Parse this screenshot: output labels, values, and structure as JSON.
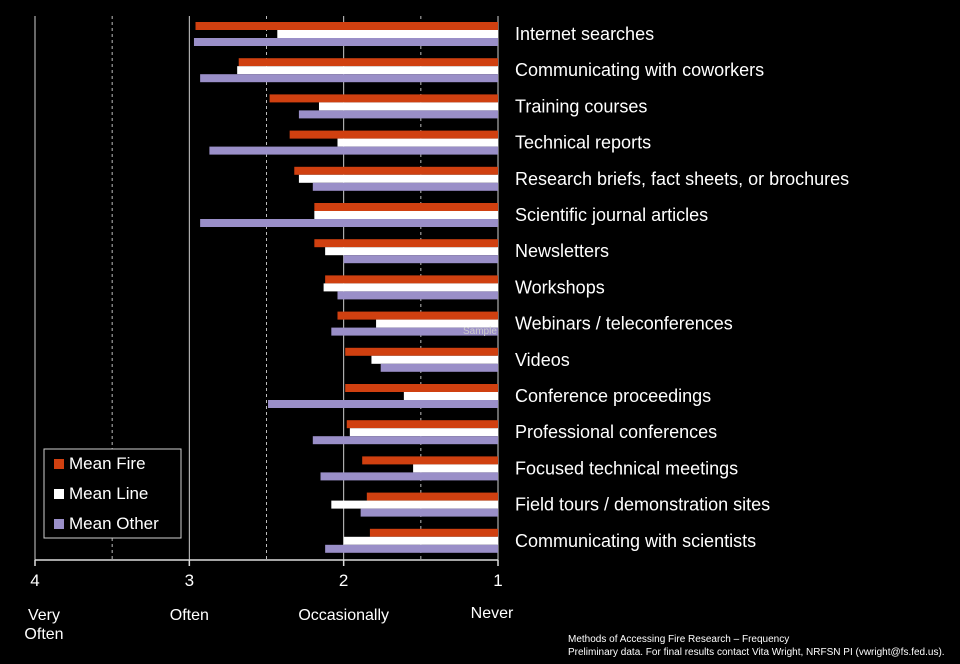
{
  "chart_data": {
    "type": "bar",
    "orientation": "horizontal",
    "categories": [
      "Internet searches",
      "Communicating with coworkers",
      "Training courses",
      "Technical reports",
      "Research briefs, fact sheets, or brochures",
      "Scientific journal articles",
      "Newsletters",
      "Workshops",
      "Webinars / teleconferences",
      "Videos",
      "Conference proceedings",
      "Professional conferences",
      "Focused technical meetings",
      "Field tours / demonstration sites",
      "Communicating with scientists"
    ],
    "series": [
      {
        "name": "Mean Fire",
        "color": "#d04010",
        "values": [
          2.96,
          2.68,
          2.48,
          2.35,
          2.32,
          2.19,
          2.19,
          2.12,
          2.04,
          1.99,
          1.99,
          1.98,
          1.88,
          1.85,
          1.83
        ]
      },
      {
        "name": "Mean Line",
        "color": "#ffffff",
        "values": [
          2.43,
          2.69,
          2.16,
          2.04,
          2.29,
          2.19,
          2.12,
          2.13,
          1.79,
          1.82,
          1.61,
          1.96,
          1.55,
          2.08,
          2.0
        ]
      },
      {
        "name": "Mean Other",
        "color": "#9a8fc8",
        "values": [
          2.97,
          2.93,
          2.29,
          2.87,
          2.2,
          2.93,
          2.0,
          2.04,
          2.08,
          1.76,
          2.49,
          2.2,
          2.15,
          1.89,
          2.12
        ]
      }
    ],
    "x_ticks": [
      4,
      3,
      2,
      1
    ],
    "xlim": [
      4,
      1
    ],
    "scale_labels": [
      "Very\nOften",
      "Often",
      "Occasionally",
      "Never"
    ],
    "legend_position": "bottom-left",
    "grid": "dashed at half values"
  },
  "watermark": "Sample",
  "footer": {
    "line1": "Methods of Accessing Fire Research – Frequency",
    "line2": "Preliminary data. For final results contact Vita Wright, NRFSN PI (vwright@fs.fed.us)."
  }
}
